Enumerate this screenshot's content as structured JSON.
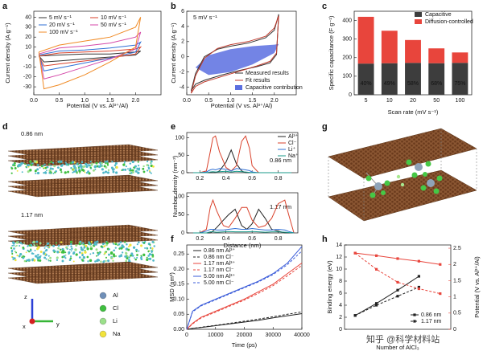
{
  "panel_letters": [
    "a",
    "b",
    "c",
    "d",
    "e",
    "f",
    "g",
    "h"
  ],
  "chart_data": [
    {
      "type": "line",
      "xlabel": "Potential (V vs. Al³⁺/Al)",
      "ylabel": "Current density (A g⁻¹)",
      "xlim": [
        0,
        2.5
      ],
      "xticks": [
        {
          "value": 0,
          "label": "0.0"
        },
        0.5,
        {
          "value": 1,
          "label": "1.0"
        },
        1.5,
        {
          "value": 2,
          "label": "2.0"
        }
      ],
      "ylim": [
        -38,
        46
      ],
      "yticks": [
        -30,
        -20,
        -10,
        0,
        10,
        20,
        30,
        40
      ],
      "series": [
        {
          "name": "5 mV s⁻¹",
          "color": "#333333",
          "x": [
            0.1,
            0.5,
            1.0,
            1.5,
            2.0,
            2.1,
            2.0,
            1.5,
            1.0,
            0.5,
            0.2,
            0.1
          ],
          "values": [
            1,
            2,
            3,
            3,
            5,
            6,
            2,
            0,
            -2,
            -4,
            -5,
            1
          ]
        },
        {
          "name": "10 mV s⁻¹",
          "color": "#d9412b",
          "x": [
            0.1,
            0.5,
            1.0,
            1.5,
            2.0,
            2.1,
            2.0,
            1.5,
            1.0,
            0.5,
            0.2,
            0.1
          ],
          "values": [
            1,
            4,
            5,
            6,
            8,
            10,
            3,
            -1,
            -4,
            -7,
            -9,
            1
          ]
        },
        {
          "name": "20 mV s⁻¹",
          "color": "#2f6fd6",
          "x": [
            0.1,
            0.5,
            1.0,
            1.5,
            2.0,
            2.1,
            2.0,
            1.5,
            1.0,
            0.5,
            0.2,
            0.1
          ],
          "values": [
            2,
            6,
            7,
            9,
            12,
            15,
            5,
            -1,
            -6,
            -11,
            -14,
            2
          ]
        },
        {
          "name": "50 mV s⁻¹",
          "color": "#d447a8",
          "x": [
            0.1,
            0.5,
            1.0,
            1.5,
            2.0,
            2.1,
            2.0,
            1.5,
            1.0,
            0.5,
            0.2,
            0.1
          ],
          "values": [
            3,
            9,
            11,
            14,
            20,
            25,
            8,
            -2,
            -10,
            -18,
            -22,
            3
          ]
        },
        {
          "name": "100 mV s⁻¹",
          "color": "#f08a24",
          "x": [
            0.1,
            0.5,
            1.0,
            1.5,
            2.0,
            2.1,
            2.0,
            1.5,
            1.0,
            0.5,
            0.2,
            0.1
          ],
          "values": [
            5,
            12,
            16,
            20,
            30,
            40,
            10,
            -5,
            -18,
            -28,
            -32,
            5
          ]
        }
      ]
    },
    {
      "type": "line",
      "xlabel": "Potential (V vs. Al³⁺/Al)",
      "ylabel": "Current density (A g⁻¹)",
      "annotation": "5 mV s⁻¹",
      "xlim": [
        0,
        2.5
      ],
      "xticks": [
        {
          "value": 0,
          "label": "0.0"
        },
        0.5,
        {
          "value": 1,
          "label": "1.0"
        },
        1.5,
        {
          "value": 2,
          "label": "2.0"
        }
      ],
      "ylim": [
        -5,
        6
      ],
      "yticks": [
        -4,
        -2,
        0,
        2,
        4,
        6
      ],
      "series": [
        {
          "name": "Capacitive contribution",
          "color": "#5b6fe0",
          "fill": true,
          "x": [
            0.2,
            0.5,
            1.0,
            1.5,
            2.0,
            2.1,
            2.0,
            1.5,
            1.0,
            0.5,
            0.2
          ],
          "values": [
            -1.4,
            0.2,
            1.0,
            1.4,
            1.6,
            1.7,
            0.5,
            -1.0,
            -2.0,
            -2.4,
            -1.4
          ]
        },
        {
          "name": "Measured results",
          "color": "#333333",
          "x": [
            0.1,
            0.2,
            0.4,
            0.7,
            1.0,
            1.4,
            1.8,
            2.0,
            2.1,
            2.05,
            1.9,
            1.6,
            1.2,
            0.8,
            0.4,
            0.2,
            0.1
          ],
          "values": [
            -4.5,
            -2.2,
            0,
            1,
            1.4,
            1.8,
            2.5,
            3.5,
            5.6,
            0.3,
            -0.8,
            -1.3,
            -1.8,
            -2.4,
            -3.1,
            -3.6,
            -4.5
          ]
        },
        {
          "name": "Fit results",
          "color": "#c0392b",
          "x": [
            0.1,
            0.2,
            0.4,
            0.7,
            1.0,
            1.4,
            1.8,
            2.0,
            2.1,
            2.05,
            1.9,
            1.6,
            1.2,
            0.8,
            0.4,
            0.2,
            0.1
          ],
          "values": [
            -4.8,
            -2.5,
            -0.2,
            1.1,
            1.6,
            2.0,
            2.7,
            3.8,
            5.4,
            0.5,
            -0.6,
            -1.2,
            -1.9,
            -2.6,
            -3.3,
            -3.9,
            -4.8
          ]
        }
      ]
    },
    {
      "type": "bar",
      "stacked": true,
      "xlabel": "Scan rate (mV s⁻¹)",
      "ylabel": "Specific capacitance (F g⁻¹)",
      "categories": [
        "5",
        "10",
        "20",
        "50",
        "100"
      ],
      "ylim": [
        0,
        450
      ],
      "yticks": [
        0,
        100,
        200,
        300,
        400
      ],
      "series": [
        {
          "name": "Capacitive",
          "color": "#3d3d3d",
          "values": [
            168,
            170,
            172,
            170,
            172
          ]
        },
        {
          "name": "Diffusion-controlled",
          "color": "#e8453c",
          "values": [
            252,
            175,
            123,
            80,
            56
          ]
        }
      ],
      "share": {
        "values": [
          40,
          49,
          58,
          68,
          75
        ],
        "value_labels": [
          "40%",
          "49%",
          "58%",
          "68%",
          "75%"
        ]
      }
    },
    {
      "type": "line",
      "ylabel": "Number density (nm⁻³)",
      "annotation": "0.86 nm",
      "xlim": [
        0.1,
        0.95
      ],
      "xticks": [
        0.2,
        0.4,
        0.6,
        0.8
      ],
      "ylim": [
        0,
        115
      ],
      "yticks": [
        0,
        50,
        100
      ],
      "x": [
        0.15,
        0.2,
        0.25,
        0.28,
        0.3,
        0.32,
        0.35,
        0.4,
        0.44,
        0.48,
        0.52,
        0.55,
        0.58,
        0.6,
        0.65,
        0.7,
        0.8,
        0.9
      ],
      "series": [
        {
          "name": "Al³⁺",
          "color": "#222222",
          "values": [
            0,
            0,
            0,
            0,
            0,
            0,
            5,
            30,
            65,
            25,
            5,
            0,
            0,
            0,
            0,
            0,
            0,
            0
          ]
        },
        {
          "name": "Cl⁻",
          "color": "#d9412b",
          "values": [
            0,
            0,
            5,
            60,
            100,
            105,
            60,
            15,
            5,
            20,
            90,
            105,
            70,
            20,
            0,
            0,
            0,
            0
          ]
        },
        {
          "name": "Li⁺",
          "color": "#2f6fd6",
          "values": [
            0,
            0,
            2,
            8,
            10,
            8,
            12,
            10,
            5,
            12,
            10,
            8,
            6,
            2,
            0,
            0,
            0,
            0
          ]
        },
        {
          "name": "Na⁺",
          "color": "#1a9a8a",
          "values": [
            0,
            0,
            0,
            2,
            3,
            2,
            3,
            4,
            2,
            4,
            3,
            2,
            1,
            0,
            0,
            0,
            0,
            0
          ]
        }
      ]
    },
    {
      "type": "line",
      "xlabel": "Distance (nm)",
      "annotation": "1.17 nm",
      "xlim": [
        0.1,
        0.95
      ],
      "xticks": [
        0.2,
        0.4,
        0.6,
        0.8
      ],
      "ylim": [
        0,
        110
      ],
      "yticks": [
        0,
        50,
        100
      ],
      "x": [
        0.15,
        0.2,
        0.25,
        0.28,
        0.3,
        0.33,
        0.38,
        0.42,
        0.47,
        0.52,
        0.56,
        0.6,
        0.65,
        0.7,
        0.75,
        0.8,
        0.85,
        0.88,
        0.92
      ],
      "series": [
        {
          "color": "#222222",
          "values": [
            0,
            0,
            0,
            0,
            5,
            15,
            35,
            50,
            65,
            20,
            10,
            25,
            65,
            40,
            10,
            5,
            0,
            0,
            0
          ]
        },
        {
          "color": "#d9412b",
          "values": [
            0,
            0,
            10,
            70,
            90,
            60,
            20,
            15,
            40,
            70,
            70,
            35,
            15,
            20,
            40,
            80,
            90,
            50,
            0
          ]
        },
        {
          "color": "#2f6fd6",
          "values": [
            0,
            0,
            5,
            10,
            10,
            8,
            8,
            10,
            12,
            10,
            10,
            12,
            10,
            8,
            8,
            10,
            8,
            4,
            0
          ]
        },
        {
          "color": "#1a9a8a",
          "values": [
            0,
            0,
            0,
            3,
            3,
            2,
            3,
            4,
            3,
            3,
            3,
            4,
            3,
            2,
            3,
            3,
            2,
            1,
            0
          ]
        }
      ]
    },
    {
      "type": "line",
      "xlabel": "Time (ps)",
      "ylabel": "MSD (nm²)",
      "xlim": [
        0,
        40000
      ],
      "xticks": [
        0,
        10000,
        20000,
        30000,
        40000
      ],
      "ylim": [
        0,
        0.28
      ],
      "yticks": [
        {
          "value": 0,
          "label": "0.00"
        },
        0.05,
        {
          "value": 0.1,
          "label": "0.10"
        },
        0.15,
        {
          "value": 0.2,
          "label": "0.20"
        },
        0.25
      ],
      "x": [
        0,
        2000,
        5000,
        10000,
        15000,
        20000,
        25000,
        30000,
        35000,
        40000
      ],
      "series": [
        {
          "name": "0.86 nm Al³⁺",
          "color": "#222222",
          "values": [
            0,
            0.003,
            0.006,
            0.012,
            0.018,
            0.024,
            0.03,
            0.038,
            0.045,
            0.052
          ]
        },
        {
          "name": "0.86 nm Cl⁻",
          "color": "#222222",
          "dash": true,
          "values": [
            0,
            0.003,
            0.007,
            0.013,
            0.02,
            0.027,
            0.034,
            0.042,
            0.05,
            0.058
          ]
        },
        {
          "name": "1.17 nm Al³⁺",
          "color": "#e8453c",
          "values": [
            0,
            0.02,
            0.04,
            0.06,
            0.08,
            0.1,
            0.125,
            0.15,
            0.185,
            0.22
          ]
        },
        {
          "name": "1.17 nm Cl⁻",
          "color": "#e8453c",
          "dash": true,
          "values": [
            0,
            0.018,
            0.038,
            0.057,
            0.077,
            0.097,
            0.12,
            0.145,
            0.178,
            0.212
          ]
        },
        {
          "name": "5.00 nm Al³⁺",
          "color": "#3a5bd9",
          "values": [
            0,
            0.06,
            0.08,
            0.1,
            0.12,
            0.14,
            0.16,
            0.185,
            0.22,
            0.275
          ]
        },
        {
          "name": "5.00 nm Cl⁻",
          "color": "#3a5bd9",
          "dash": true,
          "values": [
            0,
            0.058,
            0.078,
            0.098,
            0.118,
            0.138,
            0.158,
            0.182,
            0.215,
            0.26
          ]
        }
      ]
    },
    {
      "type": "line",
      "xlabel": "Number of AlCl₃",
      "ylabel": "Binding energy (eV)",
      "y2label": "Potential (V vs. Al³⁺/Al)",
      "y2color": "#e8453c",
      "xlim": [
        0.5,
        5.5
      ],
      "ylim": [
        0,
        14
      ],
      "yticks": [
        0,
        2,
        4,
        6,
        8,
        10,
        12,
        14
      ],
      "y2lim": [
        0,
        2.6
      ],
      "y2ticks": [
        0,
        0.5,
        1,
        1.5,
        2,
        2.5
      ],
      "x": [
        1,
        2,
        3,
        4,
        5
      ],
      "series": [
        {
          "name": "0.86 nm",
          "color": "#222222",
          "marker": true,
          "values": [
            2.3,
            4.3,
            6.5,
            8.8,
            null
          ]
        },
        {
          "name": "1.17 nm",
          "color": "#222222",
          "marker": true,
          "dash": true,
          "values": [
            2.3,
            4.0,
            5.5,
            7.0,
            null
          ]
        },
        {
          "color": "#e8453c",
          "marker": true,
          "axis": "y2",
          "values": [
            2.35,
            2.27,
            2.18,
            2.1,
            2.0
          ]
        },
        {
          "color": "#e8453c",
          "marker": true,
          "axis": "y2",
          "dash": true,
          "values": [
            2.35,
            1.85,
            1.45,
            1.25,
            1.1
          ]
        }
      ]
    }
  ],
  "panel_d": {
    "slabs": [
      "0.86 nm",
      "1.17 nm"
    ],
    "axes": [
      "z",
      "x",
      "y"
    ],
    "legend": [
      {
        "label": "Al",
        "color": "#6f8fb8"
      },
      {
        "label": "Cl",
        "color": "#3fbf3f"
      },
      {
        "label": "Li",
        "color": "#9be08a"
      },
      {
        "label": "Na",
        "color": "#f2e33a"
      }
    ]
  },
  "watermark": "知乎 @科学材料站"
}
